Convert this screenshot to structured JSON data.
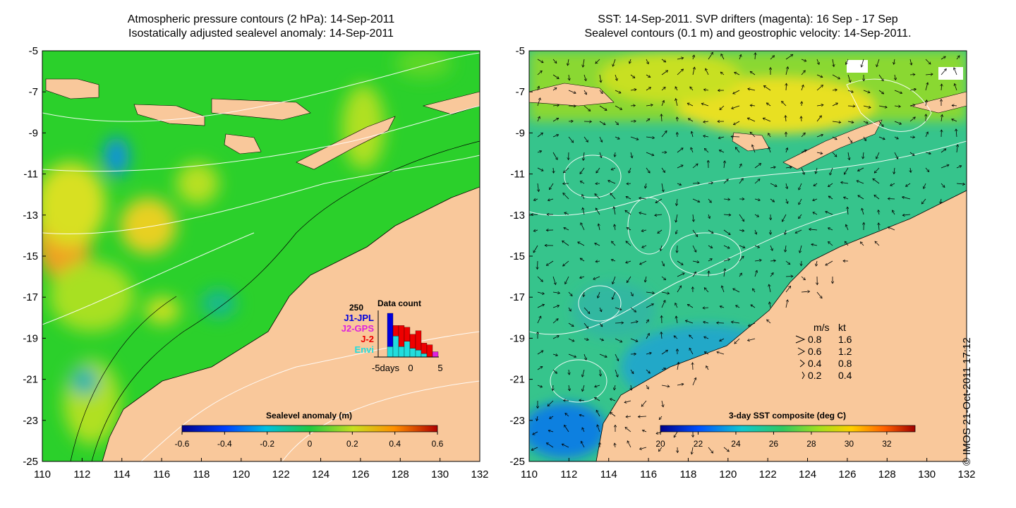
{
  "left_panel": {
    "title_line1": "Atmospheric pressure contours (2 hPa): 14-Sep-2011",
    "title_line2": "Isostatically adjusted sealevel anomaly: 14-Sep-2011",
    "colorbar": {
      "title": "Sealevel anomaly (m)",
      "ticks": [
        "-0.6",
        "-0.4",
        "-0.2",
        "0",
        "0.2",
        "0.4",
        "0.6"
      ],
      "min": -0.6,
      "max": 0.6
    },
    "data_count_inset": {
      "title": "Data count",
      "ymax_label": "250",
      "missions": [
        {
          "name": "J1-JPL",
          "color": "#0000dd"
        },
        {
          "name": "J2-GPS",
          "color": "#dd22dd"
        },
        {
          "name": "J-2",
          "color": "#ee0000"
        },
        {
          "name": "Envi",
          "color": "#22dddd"
        }
      ],
      "x_labels": [
        "-5days",
        "0",
        "5"
      ],
      "bars": [
        {
          "day": -5,
          "envi": 0,
          "j2": 0,
          "j2gps": 0,
          "j1": 0
        },
        {
          "day": -4,
          "envi": 60,
          "j2": 0,
          "j2gps": 0,
          "j1": 190
        },
        {
          "day": -3,
          "envi": 120,
          "j2": 60,
          "j2gps": 0,
          "j1": 0
        },
        {
          "day": -2,
          "envi": 60,
          "j2": 120,
          "j2gps": 0,
          "j1": 0
        },
        {
          "day": -1,
          "envi": 90,
          "j2": 80,
          "j2gps": 0,
          "j1": 0
        },
        {
          "day": 0,
          "envi": 50,
          "j2": 80,
          "j2gps": 0,
          "j1": 0
        },
        {
          "day": 1,
          "envi": 40,
          "j2": 110,
          "j2gps": 0,
          "j1": 0
        },
        {
          "day": 2,
          "envi": 20,
          "j2": 60,
          "j2gps": 0,
          "j1": 0
        },
        {
          "day": 3,
          "envi": 0,
          "j2": 70,
          "j2gps": 0,
          "j1": 0
        },
        {
          "day": 4,
          "envi": 0,
          "j2": 0,
          "j2gps": 30,
          "j1": 0
        }
      ]
    }
  },
  "right_panel": {
    "title_line1": "SST: 14-Sep-2011. SVP drifters (magenta): 16 Sep - 17 Sep",
    "title_line2": "Sealevel contours (0.1 m) and geostrophic velocity: 14-Sep-2011.",
    "colorbar": {
      "title": "3-day SST composite (deg C)",
      "ticks": [
        "20",
        "22",
        "24",
        "26",
        "28",
        "30",
        "32"
      ],
      "min": 20,
      "max": 33.5
    },
    "velocity_legend": {
      "header_ms": "m/s",
      "header_kt": "kt",
      "rows": [
        {
          "ms": "0.8",
          "kt": "1.6"
        },
        {
          "ms": "0.6",
          "kt": "1.2"
        },
        {
          "ms": "0.4",
          "kt": "0.8"
        },
        {
          "ms": "0.2",
          "kt": "0.4"
        }
      ]
    }
  },
  "axes": {
    "lat_ticks": [
      "-5",
      "-7",
      "-9",
      "-11",
      "-13",
      "-15",
      "-17",
      "-19",
      "-21",
      "-23",
      "-25"
    ],
    "lon_ticks": [
      "110",
      "112",
      "114",
      "116",
      "118",
      "120",
      "122",
      "124",
      "126",
      "128",
      "130",
      "132"
    ],
    "lat_range": [
      -25,
      -5
    ],
    "lon_range": [
      110,
      132
    ]
  },
  "copyright": "© IMOS 21-Oct-2011 17:12",
  "colors": {
    "land": "#f9c89b",
    "sea_base": "#2bd02b",
    "sst_base": "#36c48c"
  }
}
